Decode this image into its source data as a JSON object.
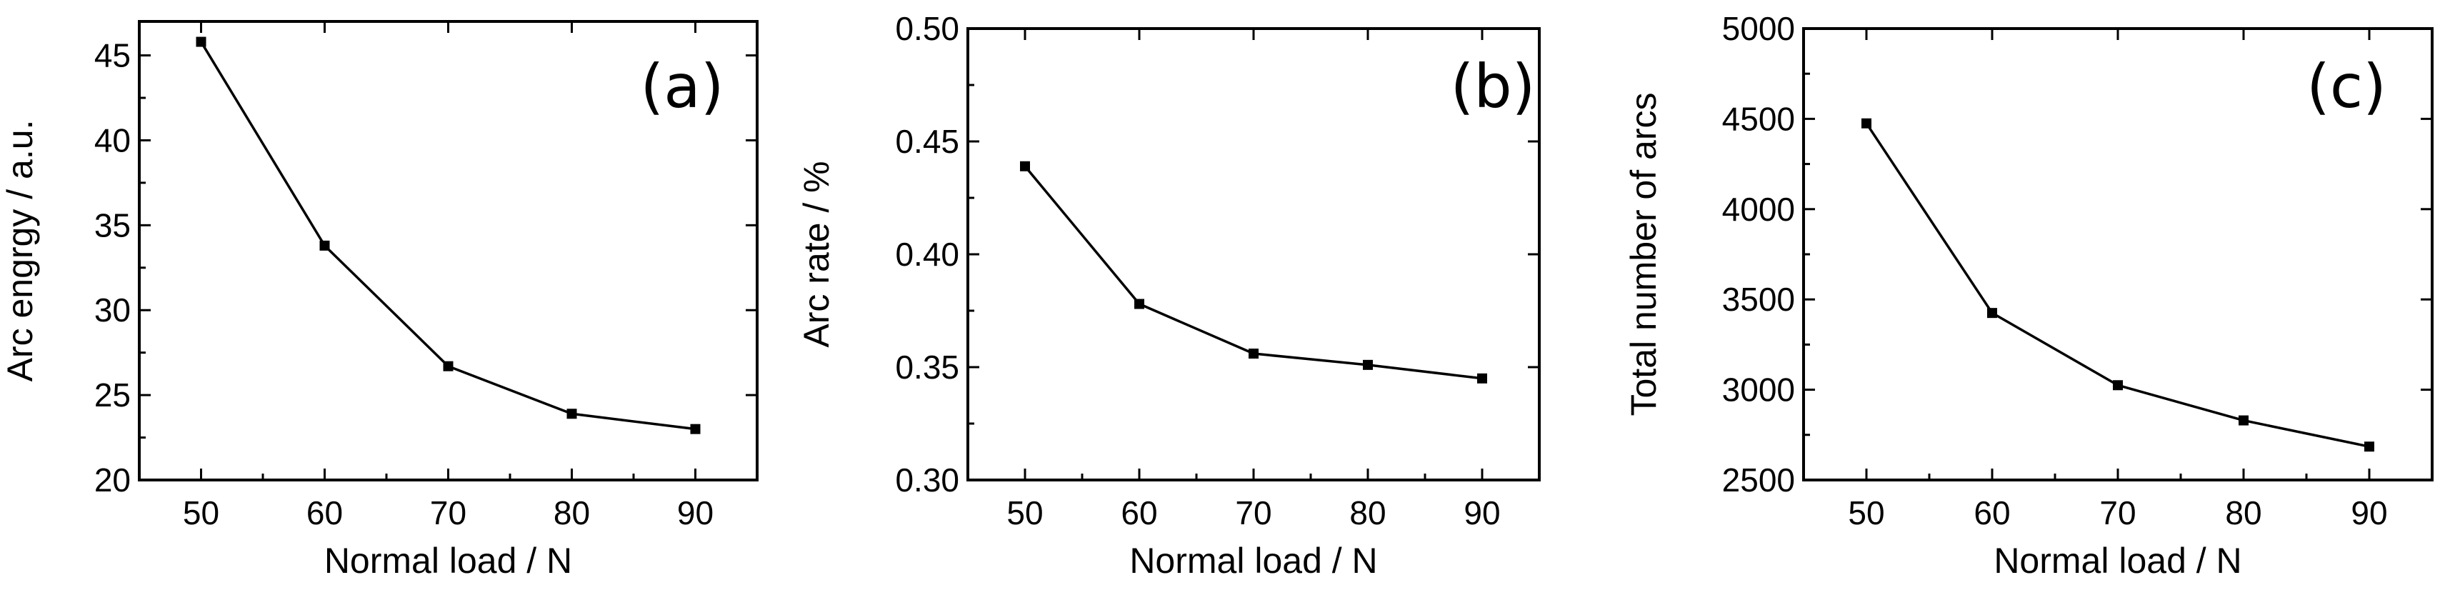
{
  "chart_data": [
    {
      "type": "line",
      "panel_label": "(a)",
      "title": "",
      "xlabel": "Normal load / N",
      "ylabel": "Arc engrgy / a.u.",
      "x": [
        50,
        60,
        70,
        80,
        90
      ],
      "series": [
        {
          "name": "Arc energy",
          "values": [
            45.8,
            33.8,
            26.7,
            23.9,
            23.0
          ]
        }
      ],
      "xlim": [
        45,
        95
      ],
      "ylim": [
        20,
        47
      ],
      "xticks": [
        50,
        60,
        70,
        80,
        90
      ],
      "yticks": [
        20,
        25,
        30,
        35,
        40,
        45
      ],
      "xtick_labels": [
        "50",
        "60",
        "70",
        "80",
        "90"
      ],
      "ytick_labels": [
        "20",
        "25",
        "30",
        "35",
        "40",
        "45"
      ],
      "grid": false,
      "marker": "square",
      "colors": {
        "line": "#000000",
        "marker": "#000000",
        "axis": "#000000"
      }
    },
    {
      "type": "line",
      "panel_label": "(b)",
      "title": "",
      "xlabel": "Normal load / N",
      "ylabel": "Arc rate / %",
      "x": [
        50,
        60,
        70,
        80,
        90
      ],
      "series": [
        {
          "name": "Arc rate",
          "values": [
            0.439,
            0.378,
            0.356,
            0.351,
            0.345
          ]
        }
      ],
      "xlim": [
        45,
        95
      ],
      "ylim": [
        0.3,
        0.5
      ],
      "xticks": [
        50,
        60,
        70,
        80,
        90
      ],
      "yticks": [
        0.3,
        0.35,
        0.4,
        0.45,
        0.5
      ],
      "xtick_labels": [
        "50",
        "60",
        "70",
        "80",
        "90"
      ],
      "ytick_labels": [
        "0.30",
        "0.35",
        "0.40",
        "0.45",
        "0.50"
      ],
      "grid": false,
      "marker": "square",
      "colors": {
        "line": "#000000",
        "marker": "#000000",
        "axis": "#000000"
      }
    },
    {
      "type": "line",
      "panel_label": "(c)",
      "title": "",
      "xlabel": "Normal load / N",
      "ylabel": "Total number of arcs",
      "x": [
        50,
        60,
        70,
        80,
        90
      ],
      "series": [
        {
          "name": "Total number of arcs",
          "values": [
            4475,
            3425,
            3025,
            2830,
            2685
          ]
        }
      ],
      "xlim": [
        45,
        95
      ],
      "ylim": [
        2500,
        5000
      ],
      "xticks": [
        50,
        60,
        70,
        80,
        90
      ],
      "yticks": [
        2500,
        3000,
        3500,
        4000,
        4500,
        5000
      ],
      "xtick_labels": [
        "50",
        "60",
        "70",
        "80",
        "90"
      ],
      "ytick_labels": [
        "2500",
        "3000",
        "3500",
        "4000",
        "4500",
        "5000"
      ],
      "grid": false,
      "marker": "square",
      "colors": {
        "line": "#000000",
        "marker": "#000000",
        "axis": "#000000"
      }
    }
  ]
}
